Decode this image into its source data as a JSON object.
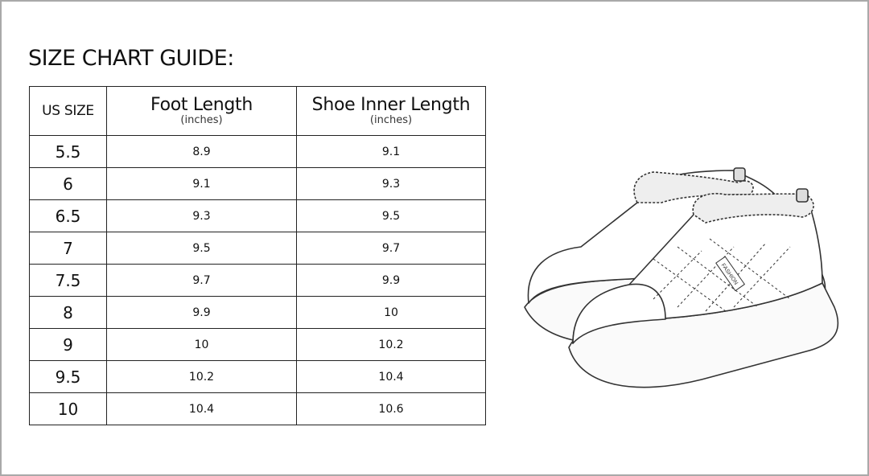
{
  "title": "SIZE CHART GUIDE:",
  "table": {
    "headers": [
      {
        "label": "US SIZE",
        "unit": ""
      },
      {
        "label": "Foot Length",
        "unit": "(inches)"
      },
      {
        "label": "Shoe Inner Length",
        "unit": "(inches)"
      }
    ],
    "rows": [
      [
        "5.5",
        "8.9",
        "9.1"
      ],
      [
        "6",
        "9.1",
        "9.3"
      ],
      [
        "6.5",
        "9.3",
        "9.5"
      ],
      [
        "7",
        "9.5",
        "9.7"
      ],
      [
        "7.5",
        "9.7",
        "9.9"
      ],
      [
        "8",
        "9.9",
        "10"
      ],
      [
        "9",
        "10",
        "10.2"
      ],
      [
        "9.5",
        "10.2",
        "10.4"
      ],
      [
        "10",
        "10.4",
        "10.6"
      ]
    ]
  },
  "illustration": {
    "tag_text": "FASHION",
    "icon": "fur-lined-slipper-shoes"
  },
  "colors": {
    "border": "#a9a9a9",
    "table_line": "#222222"
  }
}
